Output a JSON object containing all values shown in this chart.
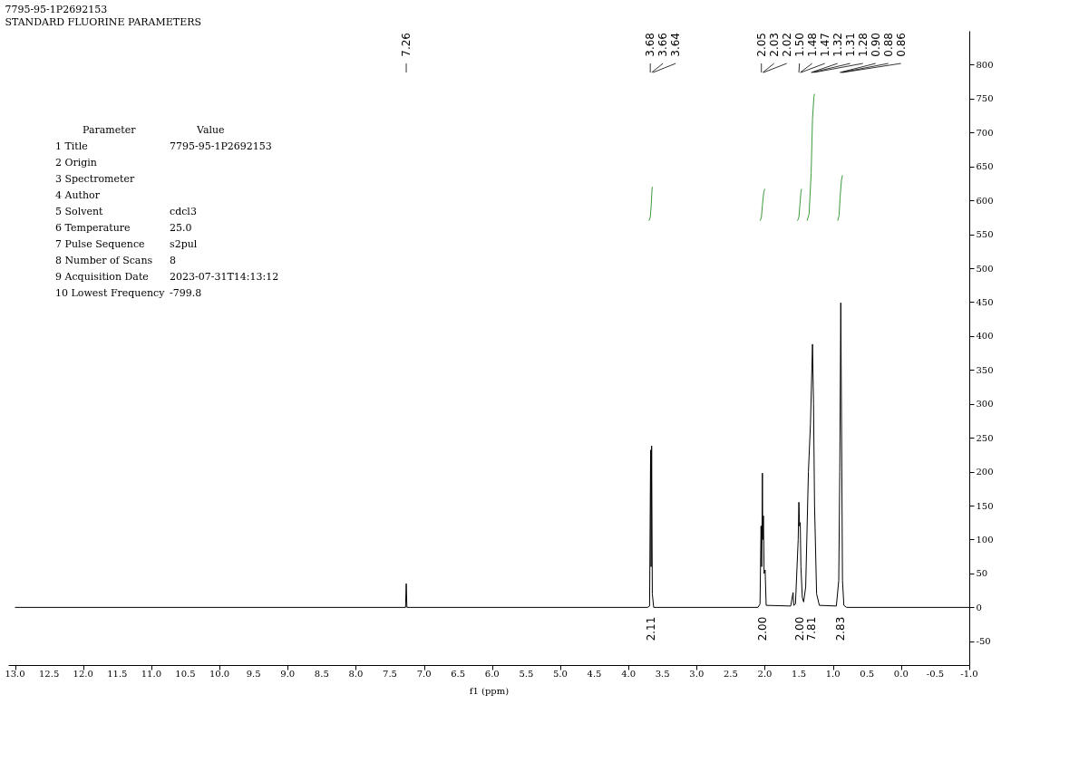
{
  "chart_data": {
    "type": "line",
    "title": "7795-95-1P2692153",
    "subtitle": "STANDARD FLUORINE PARAMETERS",
    "xlabel": "f1 (ppm)",
    "xlim": [
      13.1,
      -1.0
    ],
    "ylim": [
      -85,
      850
    ],
    "xticks": [
      {
        "value": 13.0,
        "label": "13.0"
      },
      {
        "value": 12.5,
        "label": "12.5"
      },
      {
        "value": 12.0,
        "label": "12.0"
      },
      {
        "value": 11.5,
        "label": "11.5"
      },
      {
        "value": 11.0,
        "label": "11.0"
      },
      {
        "value": 10.5,
        "label": "10.5"
      },
      {
        "value": 10.0,
        "label": "10.0"
      },
      {
        "value": 9.5,
        "label": "9.5"
      },
      {
        "value": 9.0,
        "label": "9.0"
      },
      {
        "value": 8.5,
        "label": "8.5"
      },
      {
        "value": 8.0,
        "label": "8.0"
      },
      {
        "value": 7.5,
        "label": "7.5"
      },
      {
        "value": 7.0,
        "label": "7.0"
      },
      {
        "value": 6.5,
        "label": "6.5"
      },
      {
        "value": 6.0,
        "label": "6.0"
      },
      {
        "value": 5.5,
        "label": "5.5"
      },
      {
        "value": 5.0,
        "label": "5.0"
      },
      {
        "value": 4.5,
        "label": "4.5"
      },
      {
        "value": 4.0,
        "label": "4.0"
      },
      {
        "value": 3.5,
        "label": "3.5"
      },
      {
        "value": 3.0,
        "label": "3.0"
      },
      {
        "value": 2.5,
        "label": "2.5"
      },
      {
        "value": 2.0,
        "label": "2.0"
      },
      {
        "value": 1.5,
        "label": "1.5"
      },
      {
        "value": 1.0,
        "label": "1.0"
      },
      {
        "value": 0.5,
        "label": "0.5"
      },
      {
        "value": 0.0,
        "label": "0.0"
      },
      {
        "value": -0.5,
        "label": "-0.5"
      },
      {
        "value": -1.0,
        "label": "-1.0"
      }
    ],
    "yticks": [
      -50,
      0,
      50,
      100,
      150,
      200,
      250,
      300,
      350,
      400,
      450,
      500,
      550,
      600,
      650,
      700,
      750,
      800
    ],
    "grid": false,
    "marker": "none",
    "line_style": "solid",
    "series": [
      {
        "color": "#000000",
        "x": [
          13.0,
          7.3,
          7.27,
          7.26,
          7.25,
          3.72,
          3.69,
          3.675,
          3.668,
          3.66,
          3.65,
          3.63,
          2.1,
          2.07,
          2.055,
          2.045,
          2.035,
          2.03,
          2.02,
          2.01,
          1.995,
          1.98,
          1.62,
          1.585,
          1.575,
          1.55,
          1.51,
          1.5,
          1.49,
          1.48,
          1.47,
          1.45,
          1.43,
          1.4,
          1.36,
          1.33,
          1.3,
          1.285,
          1.27,
          1.24,
          1.2,
          0.95,
          0.915,
          0.9,
          0.885,
          0.87,
          0.86,
          0.84,
          0.8,
          -1.0
        ],
        "values": [
          0,
          0,
          0,
          35,
          0,
          0,
          2,
          232,
          60,
          238,
          20,
          0,
          0,
          5,
          120,
          60,
          198,
          100,
          135,
          50,
          55,
          3,
          2,
          22,
          3,
          5,
          100,
          155,
          120,
          125,
          60,
          15,
          8,
          30,
          200,
          270,
          388,
          300,
          150,
          20,
          3,
          2,
          40,
          200,
          449,
          205,
          40,
          3,
          0,
          0
        ]
      },
      {
        "color": "#3c9a3c",
        "x": [
          3.7,
          3.68,
          3.665,
          3.655,
          3.65
        ],
        "values": [
          570,
          575,
          595,
          615,
          620
        ]
      },
      {
        "color": "#3c9a3c",
        "x": [
          2.07,
          2.05,
          2.035,
          2.015,
          2.0
        ],
        "values": [
          570,
          575,
          593,
          612,
          617
        ]
      },
      {
        "color": "#3c9a3c",
        "x": [
          1.52,
          1.5,
          1.485,
          1.47,
          1.46
        ],
        "values": [
          570,
          575,
          593,
          612,
          617
        ]
      },
      {
        "color": "#3c9a3c",
        "x": [
          1.38,
          1.35,
          1.32,
          1.3,
          1.28,
          1.27
        ],
        "values": [
          570,
          580,
          640,
          720,
          752,
          757
        ]
      },
      {
        "color": "#3c9a3c",
        "x": [
          0.93,
          0.91,
          0.895,
          0.875,
          0.86
        ],
        "values": [
          570,
          578,
          605,
          630,
          637
        ]
      }
    ],
    "annotations": [
      {
        "text": "7.26",
        "x": 7.26
      },
      {
        "text": "3.68",
        "x": 3.68
      },
      {
        "text": "3.66",
        "x": 3.66
      },
      {
        "text": "3.64",
        "x": 3.64
      },
      {
        "text": "2.05",
        "x": 2.05
      },
      {
        "text": "2.03",
        "x": 2.03
      },
      {
        "text": "2.02",
        "x": 2.02
      },
      {
        "text": "1.50",
        "x": 1.5
      },
      {
        "text": "1.48",
        "x": 1.48
      },
      {
        "text": "1.47",
        "x": 1.47
      },
      {
        "text": "1.32",
        "x": 1.32
      },
      {
        "text": "1.31",
        "x": 1.31
      },
      {
        "text": "1.28",
        "x": 1.28
      },
      {
        "text": "0.90",
        "x": 0.9
      },
      {
        "text": "0.88",
        "x": 0.88
      },
      {
        "text": "0.86",
        "x": 0.86
      },
      "2.11",
      "2.00",
      "2.00",
      "7.81",
      "2.83",
      "Parameter\tValue",
      "1 Title\t7795-95-1P2692153",
      "2 Origin\t",
      "3 Spectrometer\t",
      "4 Author\t",
      "5 Solvent\tcdcl3",
      "6 Temperature\t25.0",
      "7 Pulse Sequence\ts2pul",
      "8 Number of Scans\t8",
      "9 Acquisition Date\t2023-07-31T14:13:12",
      "10 Lowest Frequency\t-799.8"
    ]
  }
}
